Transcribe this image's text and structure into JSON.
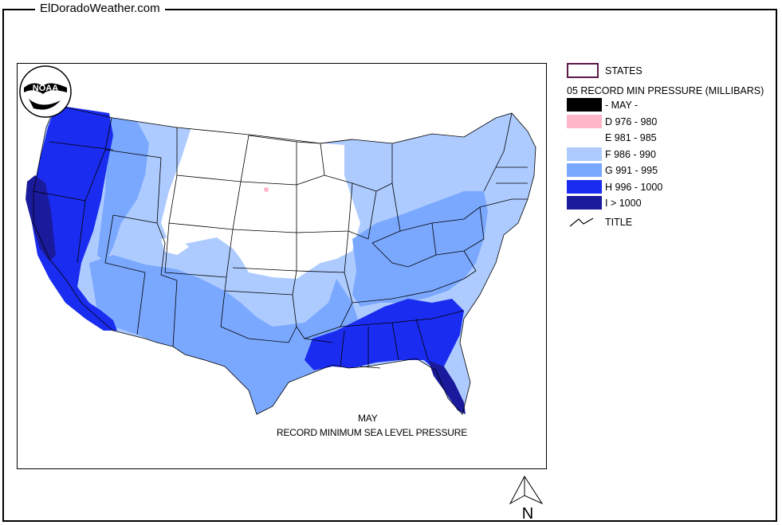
{
  "header": {
    "site_title": "ElDoradoWeather.com"
  },
  "map": {
    "caption_month": "MAY",
    "caption_description": "RECORD  MINIMUM SEA LEVEL PRESSURE",
    "logo_text": "NOAA"
  },
  "legend": {
    "states_label": "STATES",
    "layer_title": "05 RECORD MIN PRESSURE (MILLIBARS)",
    "items": [
      {
        "code": "",
        "label": "- MAY -",
        "color": "#000000"
      },
      {
        "code": "D",
        "label": "D 976 - 980",
        "color": "#ffb6c8"
      },
      {
        "code": "E",
        "label": "E 981 - 985",
        "color": "#ffffff"
      },
      {
        "code": "F",
        "label": "F 986 - 990",
        "color": "#aecbff"
      },
      {
        "code": "G",
        "label": "G 991 - 995",
        "color": "#7aa8ff"
      },
      {
        "code": "H",
        "label": "H 996 - 1000",
        "color": "#1a2cf0"
      },
      {
        "code": "I",
        "label": "I > 1000",
        "color": "#1a1a9c"
      }
    ],
    "title_symbol_label": "TITLE",
    "states_outline_color": "#5a1a4a"
  },
  "north_arrow": {
    "label": "N"
  }
}
